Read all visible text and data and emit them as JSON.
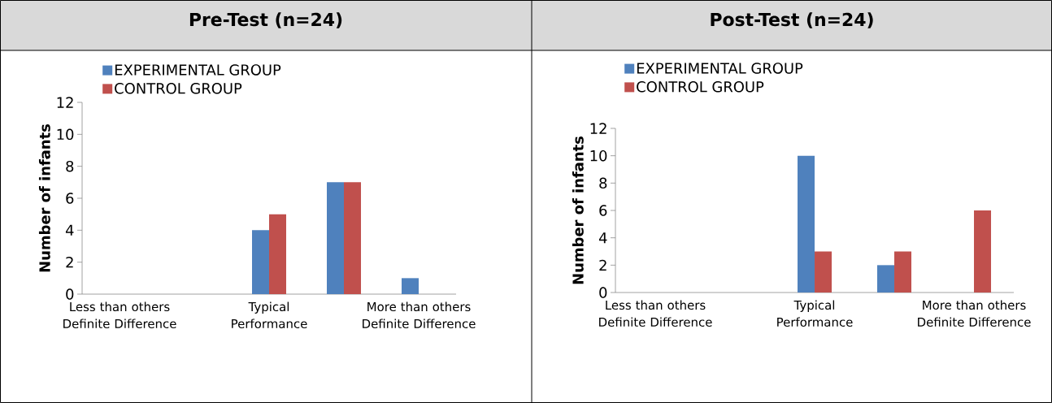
{
  "chart_data": [
    {
      "type": "bar",
      "title": "Pre-Test (n=24)",
      "ylabel": "Number of infants",
      "categories": [
        "Less than others Definite Difference",
        null,
        "Typical Performance",
        null,
        "More than others Definite Difference"
      ],
      "series": [
        {
          "name": "EXPERIMENTAL GROUP",
          "color": "#4f81bd",
          "values": [
            0,
            0,
            4,
            7,
            1
          ]
        },
        {
          "name": "CONTROL GROUP",
          "color": "#c0504d",
          "values": [
            0,
            0,
            5,
            7,
            0
          ]
        }
      ],
      "ylim": [
        0,
        12
      ],
      "yticks": [
        0,
        2,
        4,
        6,
        8,
        10,
        12
      ],
      "grid": false,
      "legend": "top left"
    },
    {
      "type": "bar",
      "title": "Post-Test (n=24)",
      "ylabel": "Number of infants",
      "categories": [
        "Less than others Definite Difference",
        null,
        "Typical Performance",
        null,
        "More than others Definite Difference"
      ],
      "series": [
        {
          "name": "EXPERIMENTAL GROUP",
          "color": "#4f81bd",
          "values": [
            0,
            0,
            10,
            2,
            0
          ]
        },
        {
          "name": "CONTROL GROUP",
          "color": "#c0504d",
          "values": [
            0,
            0,
            3,
            3,
            6
          ]
        }
      ],
      "ylim": [
        0,
        12
      ],
      "yticks": [
        0,
        2,
        4,
        6,
        8,
        10,
        12
      ],
      "grid": false,
      "legend": "top left"
    }
  ]
}
